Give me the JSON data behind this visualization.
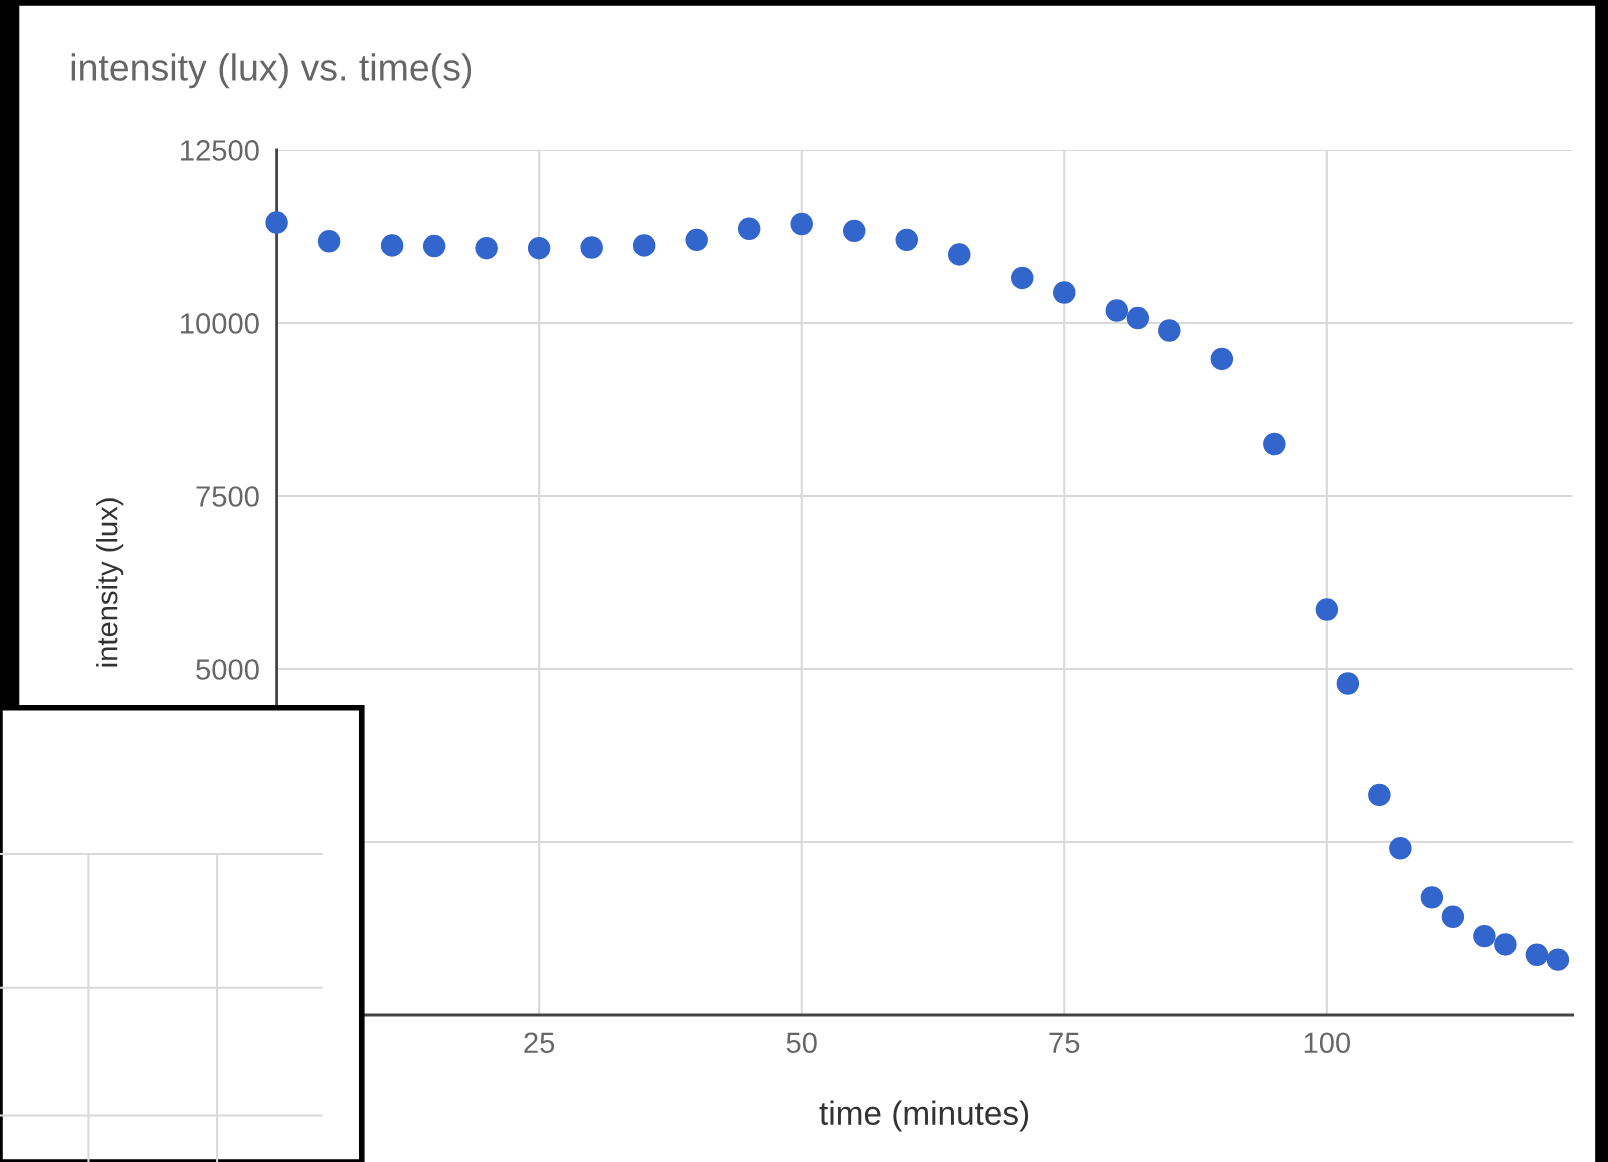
{
  "chart_data": {
    "type": "scatter",
    "title": "intensity (lux) vs. time(s)",
    "xlabel": "time (minutes)",
    "ylabel": "intensity (lux)",
    "x": [
      0,
      5,
      11,
      15,
      20,
      25,
      30,
      35,
      40,
      45,
      50,
      55,
      60,
      65,
      71,
      75,
      80,
      82,
      85,
      90,
      95,
      100,
      102,
      105,
      107,
      110,
      112,
      115,
      117,
      120,
      122
    ],
    "series": [
      {
        "color": "#3366cc",
        "values": [
          11450,
          11180,
          11120,
          11110,
          11080,
          11080,
          11090,
          11120,
          11200,
          11360,
          11430,
          11330,
          11200,
          10990,
          10650,
          10440,
          10180,
          10070,
          9890,
          9480,
          8250,
          5860,
          4790,
          3180,
          2410,
          1700,
          1420,
          1140,
          1020,
          870,
          800
        ]
      }
    ],
    "xlim": [
      0,
      123.4
    ],
    "ylim": [
      0,
      12500
    ],
    "xticks": [
      {
        "value": 0,
        "label": null
      },
      25,
      50,
      75,
      100
    ],
    "yticks": [
      {
        "value": 0,
        "label": null
      },
      {
        "value": 2500,
        "label": null
      },
      5000,
      7500,
      10000,
      12500
    ],
    "grid": true,
    "marker": "circle",
    "legend": false
  }
}
